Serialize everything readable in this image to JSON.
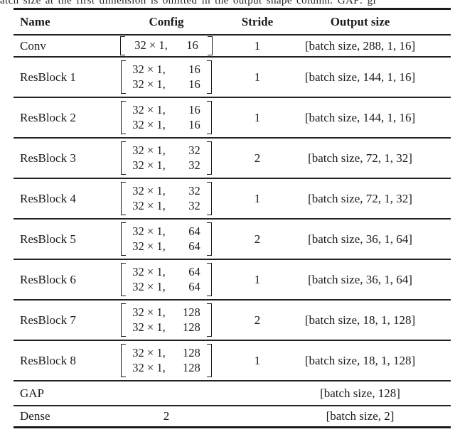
{
  "caption_fragment": "atch size at the first dimension is omitted in the output shape column. GAP: gl",
  "table": {
    "headers": {
      "name": "Name",
      "config": "Config",
      "stride": "Stride",
      "output": "Output size"
    },
    "rows": [
      {
        "name": "Conv",
        "config_lines": [
          {
            "kernel": "32 × 1,",
            "filters": "16"
          }
        ],
        "stride": "1",
        "output": "[batch size, 288, 1, 16]"
      },
      {
        "name": "ResBlock 1",
        "config_lines": [
          {
            "kernel": "32 × 1,",
            "filters": "16"
          },
          {
            "kernel": "32 × 1,",
            "filters": "16"
          }
        ],
        "stride": "1",
        "output": "[batch size, 144, 1, 16]"
      },
      {
        "name": "ResBlock 2",
        "config_lines": [
          {
            "kernel": "32 × 1,",
            "filters": "16"
          },
          {
            "kernel": "32 × 1,",
            "filters": "16"
          }
        ],
        "stride": "1",
        "output": "[batch size, 144, 1, 16]"
      },
      {
        "name": "ResBlock 3",
        "config_lines": [
          {
            "kernel": "32 × 1,",
            "filters": "32"
          },
          {
            "kernel": "32 × 1,",
            "filters": "32"
          }
        ],
        "stride": "2",
        "output": "[batch size, 72, 1, 32]"
      },
      {
        "name": "ResBlock 4",
        "config_lines": [
          {
            "kernel": "32 × 1,",
            "filters": "32"
          },
          {
            "kernel": "32 × 1,",
            "filters": "32"
          }
        ],
        "stride": "1",
        "output": "[batch size, 72, 1, 32]"
      },
      {
        "name": "ResBlock 5",
        "config_lines": [
          {
            "kernel": "32 × 1,",
            "filters": "64"
          },
          {
            "kernel": "32 × 1,",
            "filters": "64"
          }
        ],
        "stride": "2",
        "output": "[batch size, 36, 1, 64]"
      },
      {
        "name": "ResBlock 6",
        "config_lines": [
          {
            "kernel": "32 × 1,",
            "filters": "64"
          },
          {
            "kernel": "32 × 1,",
            "filters": "64"
          }
        ],
        "stride": "1",
        "output": "[batch size, 36, 1, 64]"
      },
      {
        "name": "ResBlock 7",
        "config_lines": [
          {
            "kernel": "32 × 1,",
            "filters": "128"
          },
          {
            "kernel": "32 × 1,",
            "filters": "128"
          }
        ],
        "stride": "2",
        "output": "[batch size, 18, 1, 128]"
      },
      {
        "name": "ResBlock 8",
        "config_lines": [
          {
            "kernel": "32 × 1,",
            "filters": "128"
          },
          {
            "kernel": "32 × 1,",
            "filters": "128"
          }
        ],
        "stride": "1",
        "output": "[batch size, 18, 1, 128]"
      },
      {
        "name": "GAP",
        "config_lines": [],
        "stride": "",
        "output": "[batch size, 128]"
      },
      {
        "name": "Dense",
        "config_plain": "2",
        "config_lines": [],
        "stride": "",
        "output": "[batch size, 2]"
      }
    ]
  }
}
